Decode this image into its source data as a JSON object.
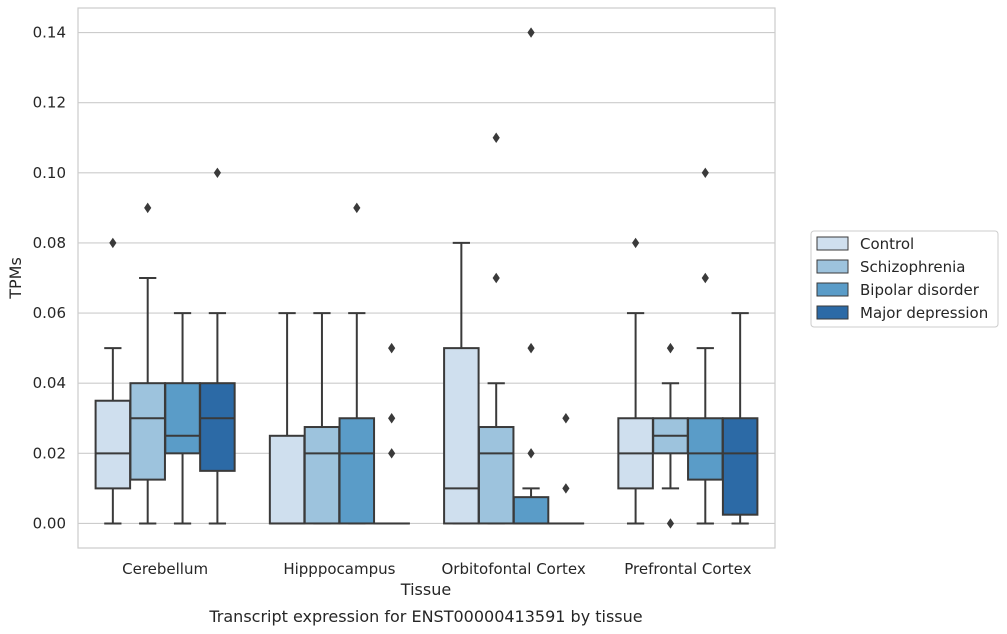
{
  "caption": "Transcript expression for ENST00000413591 by tissue",
  "chart_data": {
    "type": "boxplot",
    "xlabel": "Tissue",
    "ylabel": "TPMs",
    "ylim": [
      -0.007,
      0.147
    ],
    "yticks": [
      0.0,
      0.02,
      0.04,
      0.06,
      0.08,
      0.1,
      0.12,
      0.14
    ],
    "ytick_labels": [
      "0.00",
      "0.02",
      "0.04",
      "0.06",
      "0.08",
      "0.10",
      "0.12",
      "0.14"
    ],
    "grid": "horizontal",
    "legend_position": "right",
    "categories": [
      "Cerebellum",
      "Hipppocampus",
      "Orbitofontal Cortex",
      "Prefrontal Cortex"
    ],
    "series": [
      {
        "name": "Control",
        "color": "#cfdfee",
        "boxes": [
          {
            "whislo": 0.0,
            "q1": 0.01,
            "med": 0.02,
            "q3": 0.035,
            "whishi": 0.05,
            "fliers": [
              0.08
            ]
          },
          {
            "whislo": 0.0,
            "q1": 0.0,
            "med": 0.0,
            "q3": 0.025,
            "whishi": 0.06,
            "fliers": []
          },
          {
            "whislo": 0.0,
            "q1": 0.0,
            "med": 0.01,
            "q3": 0.05,
            "whishi": 0.08,
            "fliers": []
          },
          {
            "whislo": 0.0,
            "q1": 0.01,
            "med": 0.02,
            "q3": 0.03,
            "whishi": 0.06,
            "fliers": [
              0.08
            ]
          }
        ]
      },
      {
        "name": "Schizophrenia",
        "color": "#9dc3dd",
        "boxes": [
          {
            "whislo": 0.0,
            "q1": 0.0125,
            "med": 0.03,
            "q3": 0.04,
            "whishi": 0.07,
            "fliers": [
              0.09
            ]
          },
          {
            "whislo": 0.0,
            "q1": 0.0,
            "med": 0.02,
            "q3": 0.0275,
            "whishi": 0.06,
            "fliers": []
          },
          {
            "whislo": 0.0,
            "q1": 0.0,
            "med": 0.02,
            "q3": 0.0275,
            "whishi": 0.04,
            "fliers": [
              0.07,
              0.11
            ]
          },
          {
            "whislo": 0.01,
            "q1": 0.02,
            "med": 0.025,
            "q3": 0.03,
            "whishi": 0.04,
            "fliers": [
              0.0,
              0.05
            ]
          }
        ]
      },
      {
        "name": "Bipolar disorder",
        "color": "#5a9cc8",
        "boxes": [
          {
            "whislo": 0.0,
            "q1": 0.02,
            "med": 0.025,
            "q3": 0.04,
            "whishi": 0.06,
            "fliers": []
          },
          {
            "whislo": 0.0,
            "q1": 0.0,
            "med": 0.02,
            "q3": 0.03,
            "whishi": 0.06,
            "fliers": [
              0.09
            ]
          },
          {
            "whislo": 0.0,
            "q1": 0.0,
            "med": 0.0,
            "q3": 0.0075,
            "whishi": 0.01,
            "fliers": [
              0.02,
              0.05,
              0.14
            ]
          },
          {
            "whislo": 0.0,
            "q1": 0.0125,
            "med": 0.02,
            "q3": 0.03,
            "whishi": 0.05,
            "fliers": [
              0.07,
              0.1
            ]
          }
        ]
      },
      {
        "name": "Major depression",
        "color": "#2c6aa6",
        "boxes": [
          {
            "whislo": 0.0,
            "q1": 0.015,
            "med": 0.03,
            "q3": 0.04,
            "whishi": 0.06,
            "fliers": [
              0.1
            ]
          },
          {
            "whislo": 0.0,
            "q1": 0.0,
            "med": 0.0,
            "q3": 0.0,
            "whishi": 0.0,
            "fliers": [
              0.02,
              0.03,
              0.05
            ]
          },
          {
            "whislo": 0.0,
            "q1": 0.0,
            "med": 0.0,
            "q3": 0.0,
            "whishi": 0.0,
            "fliers": [
              0.01,
              0.03
            ]
          },
          {
            "whislo": 0.0,
            "q1": 0.0025,
            "med": 0.02,
            "q3": 0.03,
            "whishi": 0.06,
            "fliers": []
          }
        ]
      }
    ]
  }
}
